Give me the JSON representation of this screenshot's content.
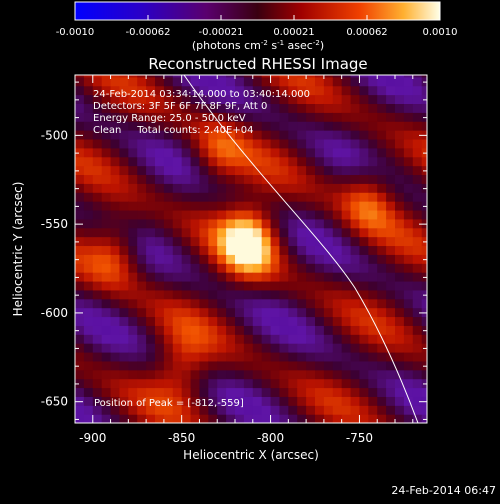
{
  "colorbar": {
    "ticks": [
      "-0.0010",
      "-0.00062",
      "-0.00021",
      "0.00021",
      "0.00062",
      "0.0010"
    ],
    "unit_text": "(photons cm",
    "unit_sup1": "-2",
    "unit_mid": " s",
    "unit_sup2": "-1",
    "unit_mid2": " asec",
    "unit_sup3": "-2",
    "unit_end": ")"
  },
  "plot": {
    "title": "Reconstructed RHESSI Image",
    "xlabel": "Heliocentric X (arcsec)",
    "ylabel": "Heliocentric Y (arcsec)",
    "info_lines": [
      "24-Feb-2014 03:34:14.000 to 03:40:14.000",
      "Detectors: 3F 5F 6F 7F 8F 9F, Att 0",
      "Energy Range: 25.0 - 50.0 keV",
      "Clean     Total counts: 2.40E+04"
    ],
    "peak_text": "Position of Peak = [-812,-559]"
  },
  "footer": {
    "timestamp": "24-Feb-2014 06:47"
  },
  "chart_data": {
    "type": "heatmap",
    "title": "Reconstructed RHESSI Image",
    "xlabel": "Heliocentric X (arcsec)",
    "ylabel": "Heliocentric Y (arcsec)",
    "xlim": [
      -910,
      -712
    ],
    "ylim": [
      -662,
      -466
    ],
    "xticks": [
      -900,
      -850,
      -800,
      -750
    ],
    "yticks": [
      -500,
      -550,
      -600,
      -650
    ],
    "colorbar_range": [
      -0.001,
      0.001
    ],
    "colormap": "blue-purple-red-yellow-white",
    "peak": {
      "x": -812,
      "y": -559
    },
    "limb": "white curve (solar limb) from top-center to lower-right",
    "bright_regions": [
      {
        "x": -812,
        "y": -559,
        "level": 1.0
      },
      {
        "x": -888,
        "y": -565,
        "level": 0.6
      },
      {
        "x": -745,
        "y": -535,
        "level": 0.55
      },
      {
        "x": -830,
        "y": -510,
        "level": 0.45
      },
      {
        "x": -850,
        "y": -630,
        "level": 0.45
      }
    ]
  },
  "colors": {
    "background": "#000000",
    "foreground": "#ffffff"
  }
}
